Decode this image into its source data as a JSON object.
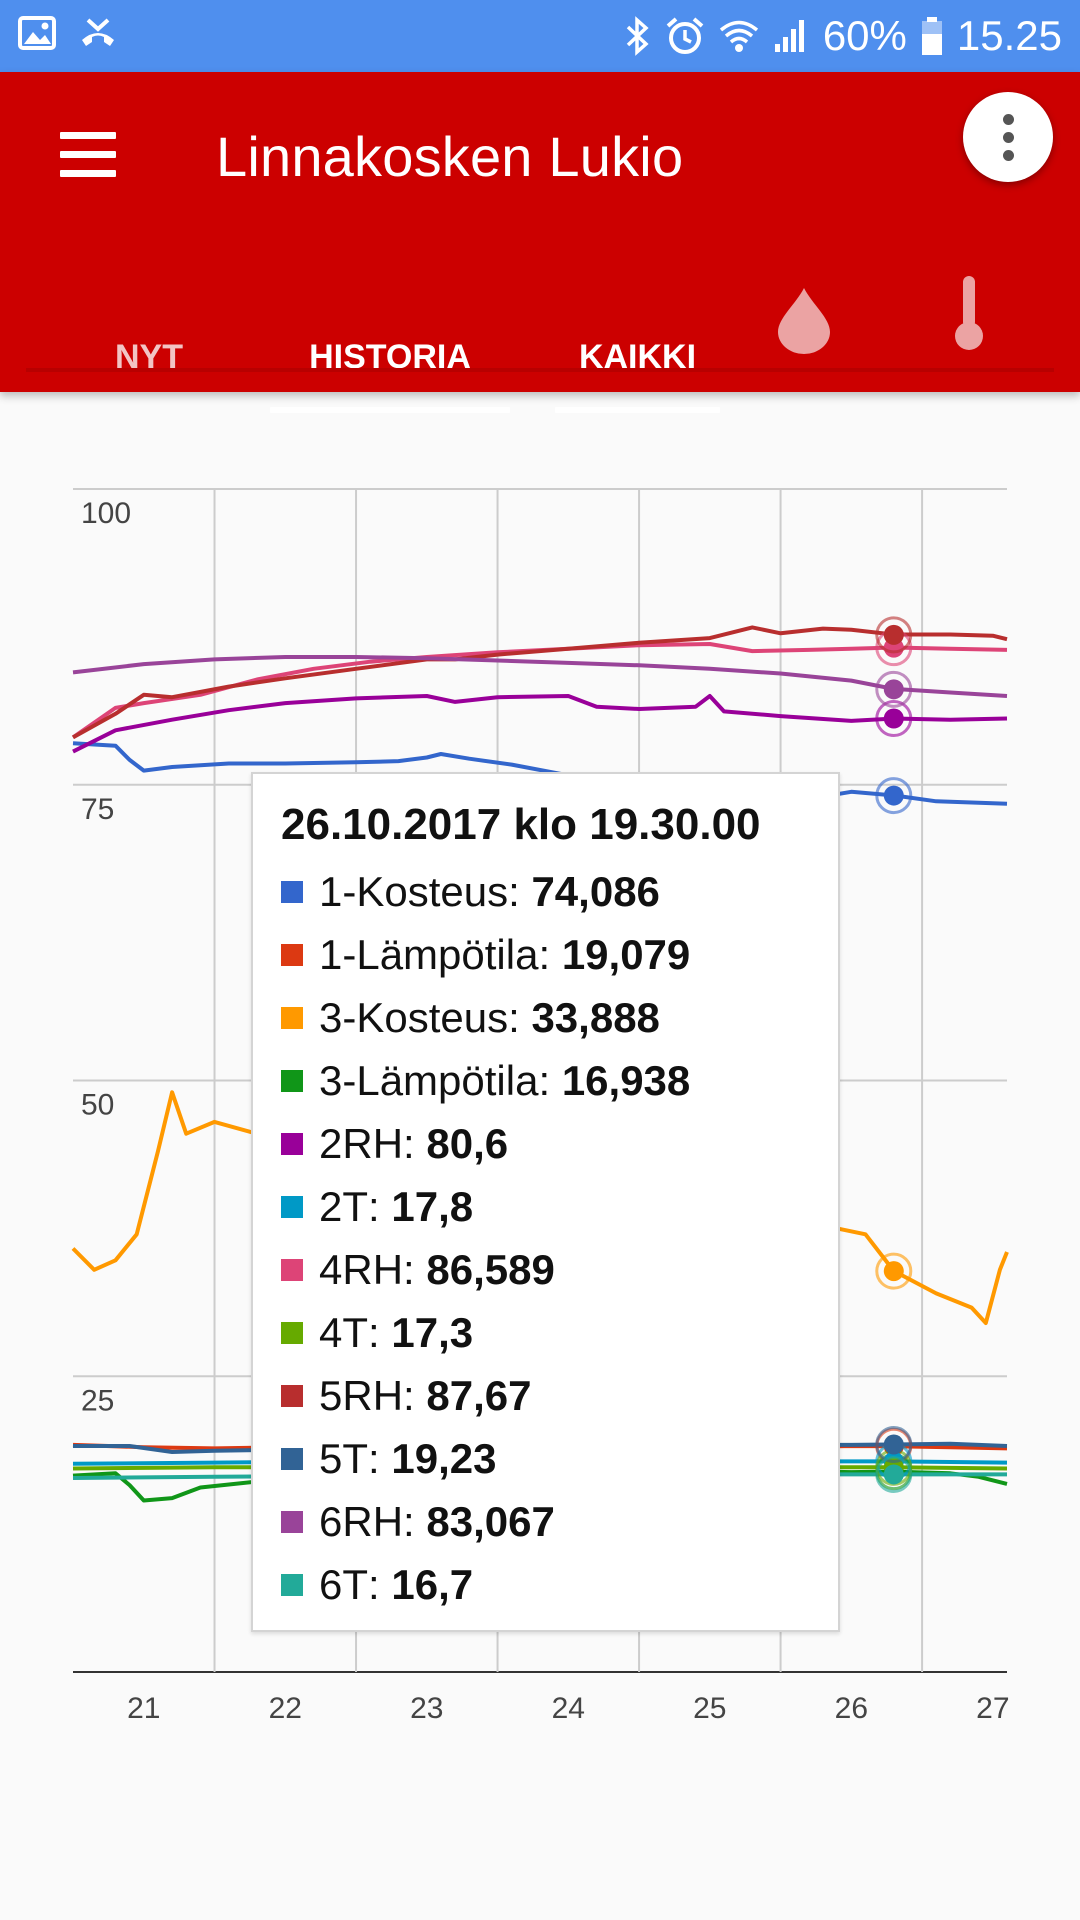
{
  "status_bar": {
    "battery": "60%",
    "time": "15.25",
    "icons": [
      "image-icon",
      "missed-call-icon",
      "bluetooth-icon",
      "alarm-icon",
      "wifi-icon",
      "signal-icon",
      "battery-icon"
    ]
  },
  "app_bar": {
    "title": "Linnakosken Lukio",
    "menu_icon": "hamburger-menu-icon",
    "more_icon": "more-vert-icon",
    "tabs": [
      {
        "label": "NYT",
        "selected": false
      },
      {
        "label": "HISTORIA",
        "selected": true
      },
      {
        "label": "KAIKKI",
        "selected": true
      }
    ],
    "tab_icons": [
      "water-drop-icon",
      "thermometer-icon"
    ],
    "colors": {
      "primary": "#cc0000",
      "status_bar": "#4f8fee"
    }
  },
  "chart_data": {
    "type": "line",
    "x_ticks": [
      "21",
      "22",
      "23",
      "24",
      "25",
      "26",
      "27"
    ],
    "y_ticks": [
      "100",
      "75",
      "50",
      "25"
    ],
    "ylim": [
      0,
      100
    ],
    "xlim": [
      20.5,
      27.1
    ],
    "grid": true,
    "hover_x": 26.3,
    "series": [
      {
        "name": "1-Kosteus",
        "color": "#3366cc",
        "points": [
          [
            20.5,
            78.5
          ],
          [
            20.8,
            78.3
          ],
          [
            20.9,
            77.1
          ],
          [
            21.0,
            76.2
          ],
          [
            21.2,
            76.5
          ],
          [
            21.6,
            76.8
          ],
          [
            22.0,
            76.8
          ],
          [
            22.5,
            76.9
          ],
          [
            22.8,
            77.0
          ],
          [
            23.0,
            77.3
          ],
          [
            23.1,
            77.6
          ],
          [
            23.3,
            77.2
          ],
          [
            23.6,
            76.7
          ],
          [
            24.0,
            75.8
          ],
          [
            24.5,
            75.0
          ],
          [
            24.9,
            74.4
          ],
          [
            25.0,
            75.8
          ],
          [
            25.1,
            72.7
          ],
          [
            25.5,
            73.4
          ],
          [
            26.0,
            74.4
          ],
          [
            26.3,
            74.1
          ],
          [
            26.6,
            73.6
          ],
          [
            27.1,
            73.4
          ]
        ]
      },
      {
        "name": "1-Lämpötila",
        "color": "#dc3912",
        "points": [
          [
            20.5,
            19.2
          ],
          [
            21.0,
            19.0
          ],
          [
            21.5,
            18.9
          ],
          [
            22.0,
            19.0
          ],
          [
            22.5,
            19.1
          ],
          [
            23.0,
            19.0
          ],
          [
            23.5,
            19.1
          ],
          [
            24.0,
            19.0
          ],
          [
            24.5,
            19.2
          ],
          [
            25.0,
            19.1
          ],
          [
            25.5,
            19.0
          ],
          [
            26.0,
            19.1
          ],
          [
            26.3,
            19.08
          ],
          [
            26.7,
            19.0
          ],
          [
            27.1,
            18.9
          ]
        ]
      },
      {
        "name": "3-Kosteus",
        "color": "#ff9900",
        "points": [
          [
            20.5,
            35.8
          ],
          [
            20.65,
            34.0
          ],
          [
            20.8,
            34.8
          ],
          [
            20.95,
            37.0
          ],
          [
            21.1,
            44.0
          ],
          [
            21.2,
            49.0
          ],
          [
            21.3,
            45.5
          ],
          [
            21.5,
            46.5
          ],
          [
            21.8,
            45.5
          ],
          [
            22.0,
            45.0
          ],
          [
            22.5,
            44.5
          ],
          [
            23.0,
            43.5
          ],
          [
            23.5,
            43.0
          ],
          [
            24.0,
            42.0
          ],
          [
            24.5,
            40.5
          ],
          [
            25.0,
            39.5
          ],
          [
            25.5,
            38.5
          ],
          [
            25.9,
            37.5
          ],
          [
            26.1,
            37.0
          ],
          [
            26.3,
            33.9
          ],
          [
            26.6,
            32.0
          ],
          [
            26.85,
            30.8
          ],
          [
            26.95,
            29.5
          ],
          [
            27.05,
            34.0
          ],
          [
            27.1,
            35.5
          ]
        ]
      },
      {
        "name": "3-Lämpötila",
        "color": "#109618",
        "points": [
          [
            20.5,
            16.6
          ],
          [
            20.8,
            16.8
          ],
          [
            20.9,
            15.8
          ],
          [
            21.0,
            14.5
          ],
          [
            21.2,
            14.7
          ],
          [
            21.4,
            15.6
          ],
          [
            21.8,
            16.1
          ],
          [
            22.0,
            16.2
          ],
          [
            22.5,
            16.4
          ],
          [
            23.0,
            16.6
          ],
          [
            23.5,
            16.7
          ],
          [
            24.0,
            16.8
          ],
          [
            24.5,
            16.9
          ],
          [
            25.0,
            17.0
          ],
          [
            25.5,
            17.0
          ],
          [
            26.0,
            16.9
          ],
          [
            26.3,
            16.94
          ],
          [
            26.7,
            16.8
          ],
          [
            26.9,
            16.5
          ],
          [
            27.1,
            15.9
          ]
        ]
      },
      {
        "name": "2RH",
        "color": "#990099",
        "points": [
          [
            20.5,
            77.8
          ],
          [
            20.8,
            79.6
          ],
          [
            21.2,
            80.5
          ],
          [
            21.6,
            81.3
          ],
          [
            22.0,
            81.9
          ],
          [
            22.5,
            82.3
          ],
          [
            23.0,
            82.5
          ],
          [
            23.2,
            82.0
          ],
          [
            23.5,
            82.4
          ],
          [
            24.0,
            82.5
          ],
          [
            24.2,
            81.6
          ],
          [
            24.5,
            81.4
          ],
          [
            24.9,
            81.6
          ],
          [
            25.0,
            82.5
          ],
          [
            25.1,
            81.2
          ],
          [
            25.5,
            80.8
          ],
          [
            26.0,
            80.4
          ],
          [
            26.3,
            80.6
          ],
          [
            26.7,
            80.5
          ],
          [
            27.1,
            80.6
          ]
        ]
      },
      {
        "name": "2T",
        "color": "#0099c6",
        "points": [
          [
            20.5,
            17.6
          ],
          [
            21.5,
            17.7
          ],
          [
            22.5,
            17.8
          ],
          [
            23.5,
            17.8
          ],
          [
            24.5,
            17.9
          ],
          [
            25.5,
            17.8
          ],
          [
            26.3,
            17.8
          ],
          [
            27.1,
            17.7
          ]
        ]
      },
      {
        "name": "4RH",
        "color": "#dd4477",
        "points": [
          [
            20.5,
            79.0
          ],
          [
            20.8,
            81.5
          ],
          [
            21.0,
            81.9
          ],
          [
            21.4,
            82.6
          ],
          [
            21.8,
            83.9
          ],
          [
            22.2,
            84.8
          ],
          [
            22.6,
            85.4
          ],
          [
            23.0,
            85.8
          ],
          [
            23.5,
            86.2
          ],
          [
            24.0,
            86.5
          ],
          [
            24.5,
            86.8
          ],
          [
            25.0,
            86.9
          ],
          [
            25.3,
            86.3
          ],
          [
            25.7,
            86.4
          ],
          [
            26.0,
            86.5
          ],
          [
            26.3,
            86.6
          ],
          [
            26.7,
            86.5
          ],
          [
            27.1,
            86.4
          ]
        ]
      },
      {
        "name": "4T",
        "color": "#66aa00",
        "points": [
          [
            20.5,
            17.2
          ],
          [
            21.5,
            17.3
          ],
          [
            22.5,
            17.3
          ],
          [
            23.5,
            17.4
          ],
          [
            24.5,
            17.4
          ],
          [
            25.5,
            17.3
          ],
          [
            26.3,
            17.3
          ],
          [
            27.1,
            17.2
          ]
        ]
      },
      {
        "name": "5RH",
        "color": "#b82e2e",
        "points": [
          [
            20.5,
            79.0
          ],
          [
            20.8,
            81.0
          ],
          [
            21.0,
            82.6
          ],
          [
            21.2,
            82.4
          ],
          [
            21.6,
            83.3
          ],
          [
            22.0,
            84.0
          ],
          [
            22.5,
            84.8
          ],
          [
            23.0,
            85.6
          ],
          [
            23.2,
            85.6
          ],
          [
            23.5,
            86.0
          ],
          [
            24.0,
            86.5
          ],
          [
            24.5,
            87.0
          ],
          [
            25.0,
            87.4
          ],
          [
            25.3,
            88.3
          ],
          [
            25.5,
            87.8
          ],
          [
            25.8,
            88.2
          ],
          [
            26.0,
            88.1
          ],
          [
            26.3,
            87.7
          ],
          [
            26.7,
            87.7
          ],
          [
            27.0,
            87.6
          ],
          [
            27.1,
            87.3
          ]
        ]
      },
      {
        "name": "5T",
        "color": "#316395",
        "points": [
          [
            20.5,
            19.1
          ],
          [
            20.9,
            19.1
          ],
          [
            21.2,
            18.6
          ],
          [
            21.5,
            18.7
          ],
          [
            22.0,
            18.8
          ],
          [
            22.5,
            18.9
          ],
          [
            23.0,
            19.0
          ],
          [
            23.5,
            19.0
          ],
          [
            24.0,
            19.1
          ],
          [
            24.5,
            19.1
          ],
          [
            25.0,
            19.2
          ],
          [
            25.5,
            19.2
          ],
          [
            26.0,
            19.2
          ],
          [
            26.3,
            19.23
          ],
          [
            26.7,
            19.3
          ],
          [
            27.1,
            19.1
          ]
        ]
      },
      {
        "name": "6RH",
        "color": "#994499",
        "points": [
          [
            20.5,
            84.5
          ],
          [
            21.0,
            85.2
          ],
          [
            21.5,
            85.6
          ],
          [
            22.0,
            85.8
          ],
          [
            22.5,
            85.8
          ],
          [
            23.0,
            85.7
          ],
          [
            23.5,
            85.5
          ],
          [
            24.0,
            85.3
          ],
          [
            24.5,
            85.1
          ],
          [
            25.0,
            84.8
          ],
          [
            25.5,
            84.4
          ],
          [
            26.0,
            83.8
          ],
          [
            26.3,
            83.1
          ],
          [
            26.7,
            82.8
          ],
          [
            27.1,
            82.5
          ]
        ]
      },
      {
        "name": "6T",
        "color": "#22aa99",
        "points": [
          [
            20.5,
            16.4
          ],
          [
            21.5,
            16.5
          ],
          [
            22.5,
            16.6
          ],
          [
            23.5,
            16.6
          ],
          [
            24.5,
            16.7
          ],
          [
            25.5,
            16.7
          ],
          [
            26.3,
            16.7
          ],
          [
            27.1,
            16.7
          ]
        ]
      }
    ],
    "tooltip": {
      "title": "26.10.2017 klo 19.30.00",
      "rows": [
        {
          "name": "1-Kosteus",
          "value": "74,086",
          "color": "#3366cc"
        },
        {
          "name": "1-Lämpötila",
          "value": "19,079",
          "color": "#dc3912"
        },
        {
          "name": "3-Kosteus",
          "value": "33,888",
          "color": "#ff9900"
        },
        {
          "name": "3-Lämpötila",
          "value": "16,938",
          "color": "#109618"
        },
        {
          "name": "2RH",
          "value": "80,6",
          "color": "#990099"
        },
        {
          "name": "2T",
          "value": "17,8",
          "color": "#0099c6"
        },
        {
          "name": "4RH",
          "value": "86,589",
          "color": "#dd4477"
        },
        {
          "name": "4T",
          "value": "17,3",
          "color": "#66aa00"
        },
        {
          "name": "5RH",
          "value": "87,67",
          "color": "#b82e2e"
        },
        {
          "name": "5T",
          "value": "19,23",
          "color": "#316395"
        },
        {
          "name": "6RH",
          "value": "83,067",
          "color": "#994499"
        },
        {
          "name": "6T",
          "value": "16,7",
          "color": "#22aa99"
        }
      ]
    }
  }
}
